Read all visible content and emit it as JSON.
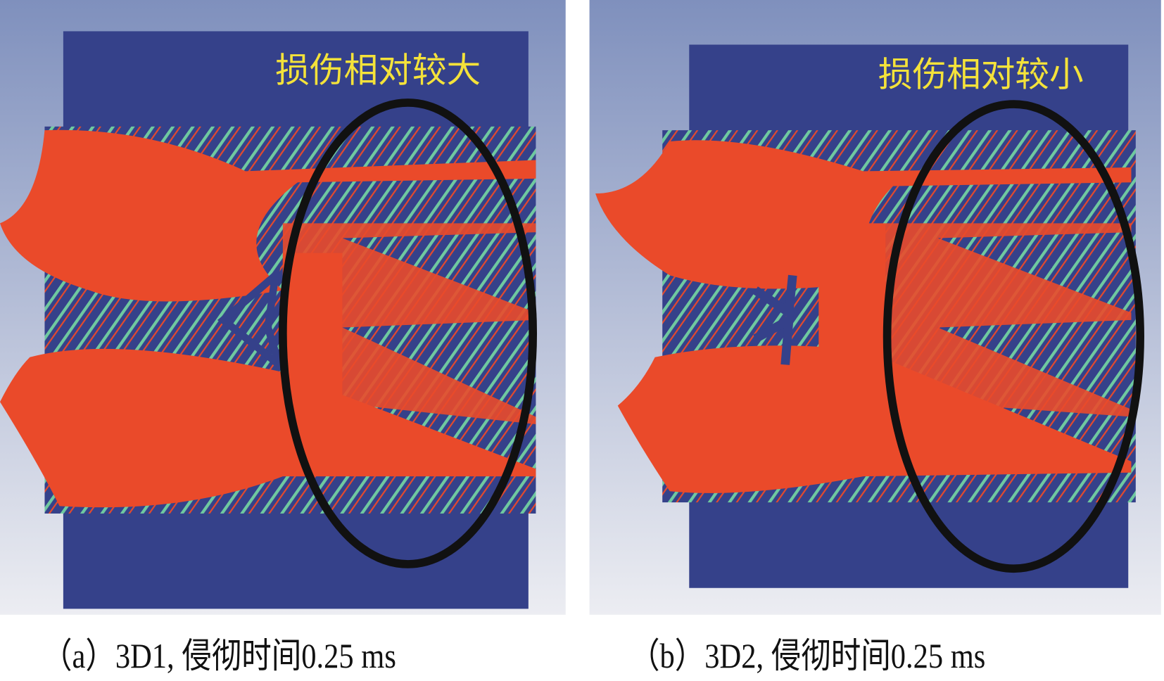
{
  "panels": [
    {
      "id": "a",
      "annotation": "损伤相对较大",
      "caption": "（a）3D1, 侵彻时间0.25 ms"
    },
    {
      "id": "b",
      "annotation": "损伤相对较小",
      "caption": "（b）3D2, 侵彻时间0.25 ms"
    }
  ],
  "colors": {
    "background_top": "#7f90bd",
    "background_bottom": "#e8e9f0",
    "target": "#35418a",
    "damage": "#ea4a2a",
    "moderate": "#7fd27a",
    "annotation": "#f4e23a",
    "ellipse": "#111111"
  }
}
